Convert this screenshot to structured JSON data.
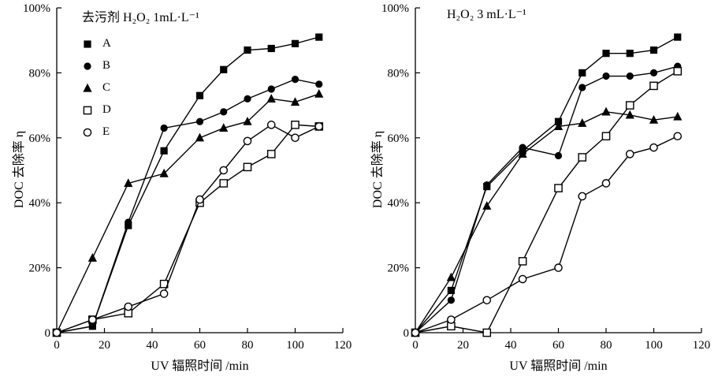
{
  "figure": {
    "background": "#ffffff",
    "line_color": "#000000"
  },
  "chart_data": [
    {
      "type": "line",
      "title": "去污剂 H₂O₂ 1mL·L⁻¹",
      "xlabel": "UV 辐照时间 /min",
      "ylabel": "DOC 去除率 η",
      "xlim": [
        0,
        120
      ],
      "ylim": [
        0,
        100
      ],
      "xticks": [
        0,
        20,
        40,
        60,
        80,
        100,
        120
      ],
      "xtick_labels": [
        "0",
        "20",
        "40",
        "60",
        "80",
        "100",
        "120"
      ],
      "yticks": [
        0,
        20,
        40,
        60,
        80,
        100
      ],
      "ytick_labels": [
        "0",
        "20%",
        "40%",
        "60%",
        "80%",
        "100%"
      ],
      "grid": false,
      "legend_position": "upper-left",
      "x": [
        0,
        15,
        30,
        45,
        60,
        70,
        80,
        90,
        100,
        110
      ],
      "series": [
        {
          "name": "A",
          "marker": "filled-square",
          "values": [
            0,
            2,
            33,
            56,
            73,
            81,
            87,
            87.5,
            89,
            91
          ]
        },
        {
          "name": "B",
          "marker": "filled-circle",
          "values": [
            0,
            2,
            34,
            63,
            65,
            68,
            72,
            75,
            78,
            76.5
          ]
        },
        {
          "name": "C",
          "marker": "filled-triangle",
          "values": [
            0,
            23,
            46,
            49,
            60,
            63,
            65,
            72,
            71,
            73.5
          ]
        },
        {
          "name": "D",
          "marker": "open-square",
          "values": [
            0,
            4,
            6,
            15,
            40,
            46,
            51,
            55,
            64,
            63.5
          ]
        },
        {
          "name": "E",
          "marker": "open-circle",
          "values": [
            0,
            4,
            8,
            12,
            41,
            50,
            59,
            64,
            60,
            63.5
          ]
        }
      ]
    },
    {
      "type": "line",
      "title": "H₂O₂ 3 mL·L⁻¹",
      "xlabel": "UV 辐照时间 /min",
      "ylabel": "DOC 去除率 η",
      "xlim": [
        0,
        120
      ],
      "ylim": [
        0,
        100
      ],
      "xticks": [
        0,
        20,
        40,
        60,
        80,
        100,
        120
      ],
      "xtick_labels": [
        "0",
        "20",
        "40",
        "60",
        "80",
        "100",
        "120"
      ],
      "yticks": [
        0,
        20,
        40,
        60,
        80,
        100
      ],
      "ytick_labels": [
        "0",
        "20%",
        "40%",
        "60%",
        "80%",
        "100%"
      ],
      "grid": false,
      "legend_position": null,
      "x": [
        0,
        15,
        30,
        45,
        60,
        70,
        80,
        90,
        100,
        110
      ],
      "series": [
        {
          "name": "A",
          "marker": "filled-square",
          "values": [
            0,
            13,
            45,
            56,
            65,
            80,
            86,
            86,
            87,
            91
          ]
        },
        {
          "name": "B",
          "marker": "filled-circle",
          "values": [
            0,
            10,
            45.5,
            57,
            54.5,
            75.5,
            79,
            79,
            80,
            82
          ]
        },
        {
          "name": "C",
          "marker": "filled-triangle",
          "values": [
            0,
            17,
            39,
            55,
            63.5,
            64.5,
            68,
            67,
            65.5,
            66.5
          ]
        },
        {
          "name": "D",
          "marker": "open-square",
          "values": [
            0,
            2,
            0,
            22,
            44.5,
            54,
            60.5,
            70,
            76,
            80.5
          ]
        },
        {
          "name": "E",
          "marker": "open-circle",
          "values": [
            0,
            4,
            10,
            16.5,
            20,
            42,
            46,
            55,
            57,
            60.5
          ]
        }
      ]
    }
  ]
}
